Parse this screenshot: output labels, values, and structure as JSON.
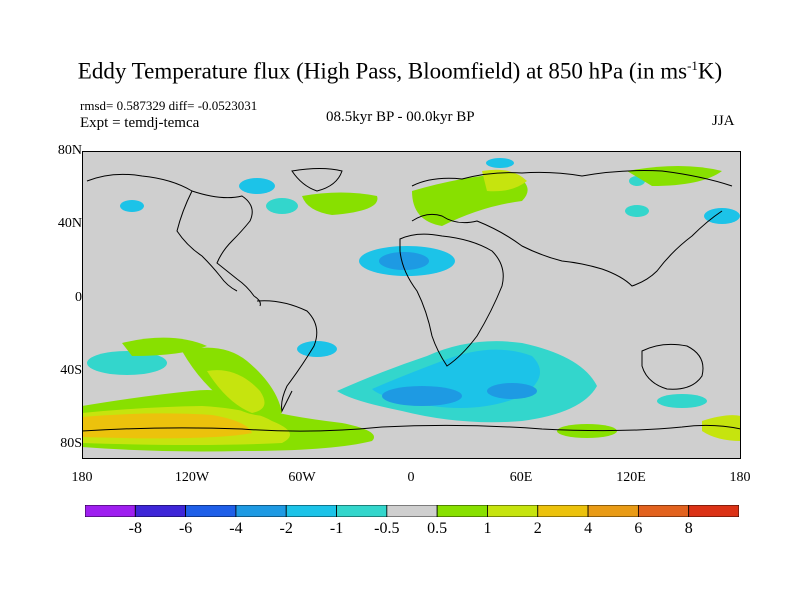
{
  "title": {
    "main": "Eddy Temperature flux (High Pass, Bloomfield) at 850 hPa (in ms",
    "sup": "-1",
    "tail": "K)"
  },
  "stats": "rmsd= 0.587329  diff= -0.0523031",
  "expt": "Expt = temdj-temca",
  "period": "08.5kyr BP - 00.0kyr BP",
  "season": "JJA",
  "lat_labels": [
    "80N",
    "40N",
    "0",
    "40S",
    "80S"
  ],
  "lon_labels": [
    "180",
    "120W",
    "60W",
    "0",
    "60E",
    "120E",
    "180"
  ],
  "colorbar": {
    "labels": [
      "-8",
      "-6",
      "-4",
      "-2",
      "-1",
      "-0.5",
      "0.5",
      "1",
      "2",
      "4",
      "6",
      "8"
    ],
    "colors": [
      "#9f1ff0",
      "#3e26d8",
      "#1f5fe8",
      "#1e9ae3",
      "#1cc3e8",
      "#33d6cc",
      "#cfcfcf",
      "#88e000",
      "#c6e40e",
      "#ecc20c",
      "#e99b16",
      "#e2621e",
      "#db3216"
    ]
  },
  "palette": {
    "ocean_bg": "#cfcfcf",
    "coast": "#000000"
  }
}
